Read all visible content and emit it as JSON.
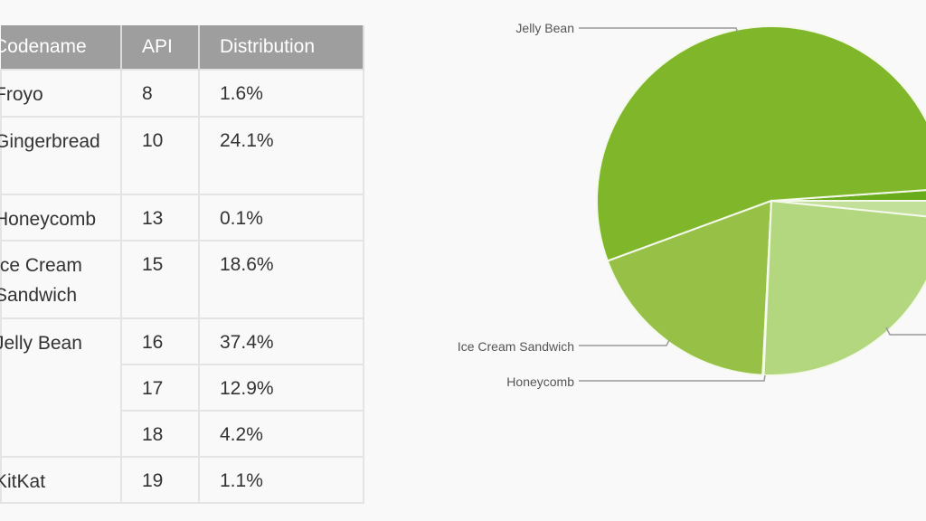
{
  "table": {
    "headers": [
      "Codename",
      "API",
      "Distribution"
    ],
    "rows": [
      {
        "codename": "Froyo",
        "api": "8",
        "dist": "1.6%"
      },
      {
        "codename": "Gingerbread",
        "api": "10",
        "dist": "24.1%"
      },
      {
        "codename": "Honeycomb",
        "api": "13",
        "dist": "0.1%"
      },
      {
        "codename": "Ice Cream Sandwich",
        "api": "15",
        "dist": "18.6%"
      },
      {
        "codename": "Jelly Bean",
        "api": "16",
        "dist": "37.4%"
      },
      {
        "codename": "",
        "api": "17",
        "dist": "12.9%"
      },
      {
        "codename": "",
        "api": "18",
        "dist": "4.2%"
      },
      {
        "codename": "KitKat",
        "api": "19",
        "dist": "1.1%"
      }
    ]
  },
  "chart_data": {
    "type": "pie",
    "slices": [
      {
        "label": "KitKat",
        "value": 1.1,
        "color": "#6aab1c"
      },
      {
        "label": "Jelly Bean",
        "value": 54.5,
        "color": "#80b72a"
      },
      {
        "label": "Ice Cream Sandwich",
        "value": 18.6,
        "color": "#96c146"
      },
      {
        "label": "Honeycomb",
        "value": 0.1,
        "color": "#a6cd66"
      },
      {
        "label": "Gingerbread",
        "value": 24.1,
        "color": "#b3d77f"
      },
      {
        "label": "Froyo",
        "value": 1.6,
        "color": "#c3e09a"
      }
    ],
    "visible_labels": [
      "Jelly Bean",
      "Ice Cream Sandwich",
      "Honeycomb"
    ]
  }
}
